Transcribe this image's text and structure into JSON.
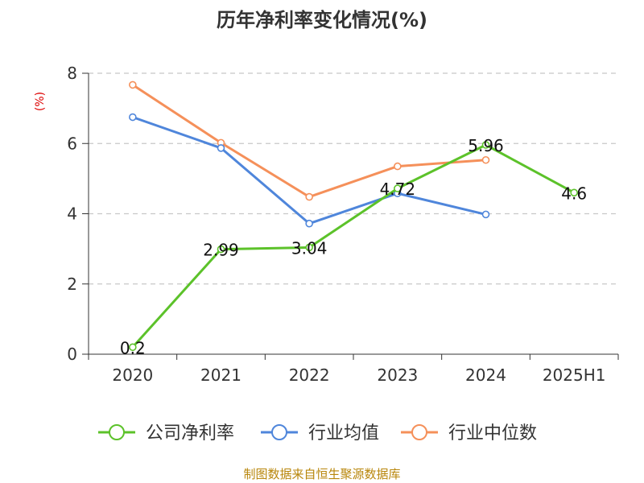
{
  "chart_data": {
    "type": "line",
    "title": "历年净利率变化情况(%)",
    "ylabel": "(%)",
    "categories": [
      "2020",
      "2021",
      "2022",
      "2023",
      "2024",
      "2025H1"
    ],
    "y_ticks": [
      "0",
      "2",
      "4",
      "6",
      "8"
    ],
    "ylim": [
      0,
      8
    ],
    "grid": "horizontal-dashed",
    "legend_position": "bottom",
    "series": [
      {
        "name": "公司净利率",
        "color": "#5cc22a",
        "values": [
          0.2,
          2.99,
          3.04,
          4.72,
          5.96,
          4.6
        ],
        "labels": [
          "0.2",
          "2.99",
          "3.04",
          "4.72",
          "5.96",
          "4.6"
        ]
      },
      {
        "name": "行业均值",
        "color": "#4f86db",
        "values": [
          6.75,
          5.87,
          3.72,
          4.58,
          3.98,
          null
        ]
      },
      {
        "name": "行业中位数",
        "color": "#f5905a",
        "values": [
          7.67,
          6.02,
          4.48,
          5.35,
          5.53,
          null
        ]
      }
    ]
  },
  "source": "制图数据来自恒生聚源数据库"
}
